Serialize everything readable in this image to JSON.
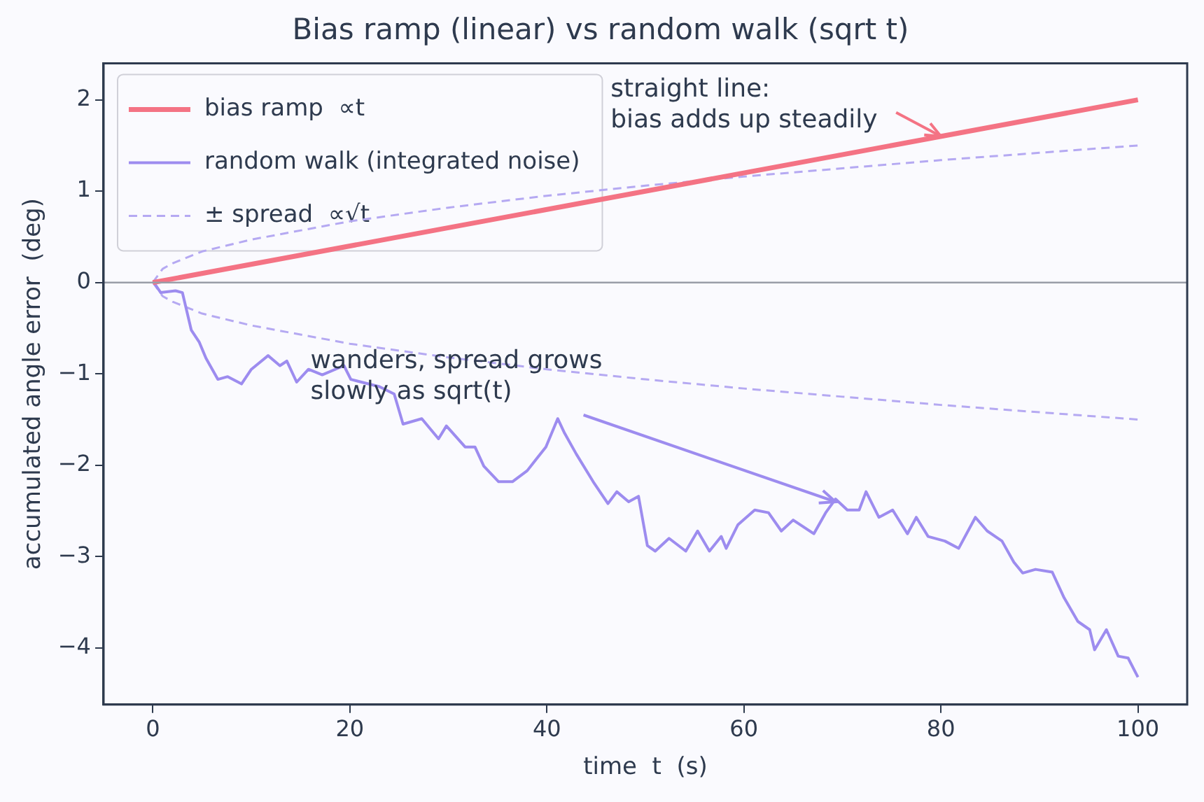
{
  "chart_data": {
    "type": "line",
    "title": "Bias ramp (linear) vs random walk (sqrt t)",
    "xlabel": "time  t  (s)",
    "ylabel": "accumulated angle error  (deg)",
    "xlim": [
      -5,
      105
    ],
    "ylim": [
      -4.62,
      2.4
    ],
    "xticks": [
      0,
      20,
      40,
      60,
      80,
      100
    ],
    "yticks": [
      -4,
      -3,
      -2,
      -1,
      0,
      1,
      2
    ],
    "grid": false,
    "legend": "top left",
    "marker": "none",
    "ref_lines": [
      {
        "axis": "y",
        "value": 0,
        "color": "#9a9ea8"
      }
    ],
    "annotations": [
      {
        "text": "straight line:\nbias adds up steadily",
        "x": 80,
        "y": 1.6
      },
      {
        "text": "wanders, spread grows\nslowly as sqrt(t)",
        "x": 69.3,
        "y": -2.4
      }
    ],
    "series": [
      {
        "name": "bias ramp  ∝t",
        "color": "#f47384",
        "line_style": "solid",
        "x": [
          0,
          100
        ],
        "values": [
          0,
          2
        ]
      },
      {
        "name": "random walk (integrated noise)",
        "color": "#9d8cef",
        "line_style": "solid",
        "x": [
          0.1,
          0.8,
          2.3,
          3.0,
          3.9,
          4.7,
          5.4,
          6.6,
          7.6,
          9.0,
          10,
          11.7,
          12.9,
          13.6,
          14.6,
          15.8,
          17.2,
          19.4,
          20.1,
          23,
          24.5,
          25.4,
          27.3,
          29.0,
          29.8,
          31.7,
          32.7,
          33.6,
          35.1,
          36.5,
          38,
          39.9,
          41.1,
          41.8,
          43,
          44.7,
          46.2,
          47.1,
          48.3,
          49.3,
          50.2,
          51,
          52.4,
          54.1,
          55.3,
          56.5,
          57.7,
          58.2,
          59.4,
          61.1,
          62.5,
          63.8,
          65,
          67.1,
          68.3,
          69.3,
          70.5,
          71.7,
          72.4,
          73.7,
          75.1,
          76.6,
          77.5,
          78.7,
          80.4,
          81.8,
          83.5,
          84.7,
          86.2,
          87.4,
          88.3,
          89.6,
          91.3,
          92.5,
          93.9,
          95.1,
          95.6,
          96.8,
          98,
          99,
          100
        ],
        "values": [
          0,
          -0.11,
          -0.09,
          -0.11,
          -0.52,
          -0.65,
          -0.83,
          -1.06,
          -1.03,
          -1.11,
          -0.95,
          -0.8,
          -0.91,
          -0.86,
          -1.09,
          -0.95,
          -1.01,
          -0.91,
          -1.06,
          -1.14,
          -1.22,
          -1.55,
          -1.49,
          -1.71,
          -1.57,
          -1.8,
          -1.8,
          -2.01,
          -2.18,
          -2.18,
          -2.06,
          -1.8,
          -1.49,
          -1.65,
          -1.88,
          -2.18,
          -2.42,
          -2.29,
          -2.4,
          -2.34,
          -2.88,
          -2.94,
          -2.8,
          -2.94,
          -2.72,
          -2.94,
          -2.78,
          -2.91,
          -2.65,
          -2.49,
          -2.52,
          -2.72,
          -2.6,
          -2.75,
          -2.52,
          -2.37,
          -2.49,
          -2.49,
          -2.29,
          -2.57,
          -2.49,
          -2.75,
          -2.57,
          -2.78,
          -2.83,
          -2.91,
          -2.57,
          -2.72,
          -2.83,
          -3.06,
          -3.18,
          -3.14,
          -3.17,
          -3.45,
          -3.71,
          -3.8,
          -4.02,
          -3.8,
          -4.09,
          -4.11,
          -4.32
        ]
      },
      {
        "name": "± spread  ∝√t",
        "color": "#b5a9f2",
        "line_style": "dashed",
        "x": [
          0,
          1,
          2,
          5,
          10,
          20,
          30,
          40,
          50,
          60,
          70,
          80,
          90,
          100
        ],
        "values": [
          0,
          0.15,
          0.21,
          0.34,
          0.47,
          0.67,
          0.82,
          0.95,
          1.06,
          1.16,
          1.25,
          1.34,
          1.42,
          1.5
        ]
      },
      {
        "color": "#b5a9f2",
        "line_style": "dashed",
        "x": [
          0,
          1,
          2,
          5,
          10,
          20,
          30,
          40,
          50,
          60,
          70,
          80,
          90,
          100
        ],
        "values": [
          0,
          -0.15,
          -0.21,
          -0.34,
          -0.47,
          -0.67,
          -0.82,
          -0.95,
          -1.06,
          -1.16,
          -1.25,
          -1.34,
          -1.42,
          -1.5
        ]
      }
    ]
  }
}
